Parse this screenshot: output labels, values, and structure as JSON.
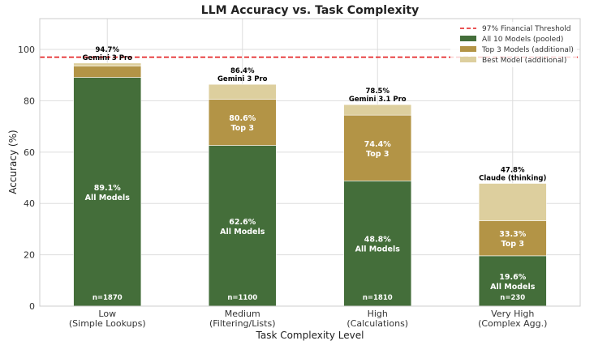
{
  "chart_data": {
    "type": "bar",
    "stacked": true,
    "title": "LLM Accuracy vs. Task Complexity",
    "xlabel": "Task Complexity Level",
    "ylabel": "Accuracy (%)",
    "ylim": [
      0,
      112
    ],
    "yticks": [
      0,
      20,
      40,
      60,
      80,
      100
    ],
    "grid": true,
    "legend_position": "top-right",
    "categories": [
      {
        "line1": "Low",
        "line2": "(Simple Lookups)"
      },
      {
        "line1": "Medium",
        "line2": "(Filtering/Lists)"
      },
      {
        "line1": "High",
        "line2": "(Calculations)"
      },
      {
        "line1": "Very High",
        "line2": "(Complex Agg.)"
      }
    ],
    "threshold": {
      "name": "97% Financial Threshold",
      "value": 97,
      "color": "#e31a1c"
    },
    "series": [
      {
        "name": "All 10 Models (pooled)",
        "color": "#446e3a",
        "values": [
          89.1,
          62.6,
          48.8,
          19.6
        ]
      },
      {
        "name": "Top 3 Models (additional)",
        "color": "#b39446",
        "values": [
          4.4,
          18.0,
          25.6,
          13.7
        ]
      },
      {
        "name": "Best Model (additional)",
        "color": "#ddcf9e",
        "values": [
          1.2,
          5.8,
          4.1,
          14.5
        ]
      }
    ],
    "all_labels": [
      {
        "value": "89.1%",
        "label": "All Models"
      },
      {
        "value": "62.6%",
        "label": "All Models"
      },
      {
        "value": "48.8%",
        "label": "All Models"
      },
      {
        "value": "19.6%",
        "label": "All Models"
      }
    ],
    "top3_labels": [
      null,
      {
        "value": "80.6%",
        "label": "Top 3"
      },
      {
        "value": "74.4%",
        "label": "Top 3"
      },
      {
        "value": "33.3%",
        "label": "Top 3"
      }
    ],
    "best_labels": [
      {
        "value": "94.7%",
        "model": "Gemini 3 Pro"
      },
      {
        "value": "86.4%",
        "model": "Gemini 3 Pro"
      },
      {
        "value": "78.5%",
        "model": "Gemini 3.1 Pro"
      },
      {
        "value": "47.8%",
        "model": "Claude (thinking)"
      }
    ],
    "sample_sizes": [
      "n=1870",
      "n=1100",
      "n=1810",
      "n=230"
    ]
  }
}
